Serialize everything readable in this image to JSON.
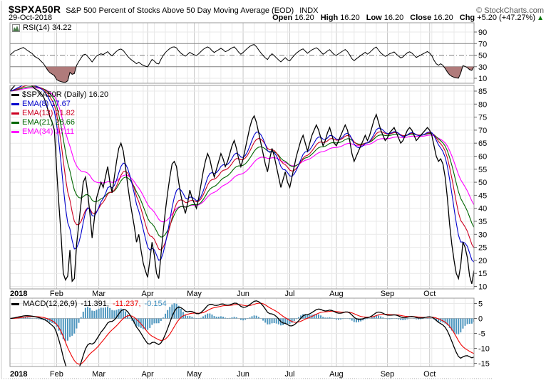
{
  "header": {
    "symbol": "$SPXA50R",
    "title": "S&P 500 Percent of Stocks Above 50 Day Moving Average (EOD)",
    "exchange": "INDX",
    "copyright": "© StockCharts.com",
    "date": "29-Oct-2018",
    "ohlc": [
      {
        "label": "Open",
        "value": "16.20"
      },
      {
        "label": "High",
        "value": "16.20"
      },
      {
        "label": "Low",
        "value": "16.20"
      },
      {
        "label": "Close",
        "value": "16.20"
      },
      {
        "label": "Chg",
        "value": "+5.20 (+47.27%)"
      }
    ],
    "chg_arrow": "▲",
    "chg_color": "#007700"
  },
  "rsi_panel": {
    "label": "RSI(14) 34.22",
    "y_ticks": [
      90,
      70,
      50,
      30,
      10
    ]
  },
  "main_panel": {
    "legend": [
      {
        "label": "$SPXA50R (Daily) 16.20",
        "color": "#000000"
      },
      {
        "label": "EMA(8) 17.67",
        "color": "#0000cc"
      },
      {
        "label": "EMA(13) 21.82",
        "color": "#cc0022"
      },
      {
        "label": "EMA(21) 28.66",
        "color": "#006600"
      },
      {
        "label": "EMA(34) 37.11",
        "color": "#ff00ff"
      }
    ],
    "y_ticks": [
      85,
      80,
      75,
      70,
      65,
      60,
      55,
      50,
      45,
      40,
      35,
      30,
      25,
      20,
      15,
      10
    ]
  },
  "macd_panel": {
    "label": "MACD(12,26,9)",
    "values": [
      {
        "text": "-11.391,",
        "color": "#000000"
      },
      {
        "text": "-11.237,",
        "color": "#ee0000"
      },
      {
        "text": "-0.154",
        "color": "#3f8fbf"
      }
    ],
    "y_ticks": [
      5,
      0,
      -5,
      -10,
      -15
    ]
  },
  "x_axis": {
    "year": "2018",
    "months": [
      "Feb",
      "Mar",
      "Apr",
      "May",
      "Jun",
      "Jul",
      "Aug",
      "Sep",
      "Oct"
    ],
    "month_start_days": [
      21,
      40,
      62,
      83,
      105,
      126,
      147,
      170,
      189
    ]
  },
  "chart_data": {
    "type": "line",
    "title": "$SPXA50R daily close with EMA(8,13,21,34) overlays, RSI(14) above, MACD(12,26,9) below",
    "x_unit": "trading day, Jan 2018 - 29 Oct 2018",
    "ylim": [
      10,
      85
    ],
    "rsi": {
      "period": 14,
      "overbought": 70,
      "midline": 50,
      "oversold": 30,
      "last": 34.22
    },
    "macd": {
      "fast": 12,
      "slow": 26,
      "signal": 9,
      "last_macd": -11.391,
      "last_signal": -11.237,
      "last_hist": -0.154
    },
    "ema_periods": [
      8,
      13,
      21,
      34
    ],
    "ema_last": {
      "ema8": 17.67,
      "ema13": 21.82,
      "ema21": 28.66,
      "ema34": 37.11
    },
    "last_close": 16.2,
    "daily_close": [
      85,
      86,
      87,
      87.5,
      88,
      88.5,
      89,
      88.5,
      88,
      87.5,
      87,
      86,
      85.5,
      85,
      84,
      83,
      81,
      78,
      75,
      73,
      70,
      55,
      42,
      30,
      15,
      12.5,
      14,
      24,
      12,
      13,
      26,
      34,
      42,
      50,
      52,
      46,
      38,
      28.6,
      36,
      44,
      47,
      50,
      48,
      52,
      56,
      50,
      46,
      52,
      58,
      63,
      65,
      62,
      56,
      49,
      43,
      38,
      33,
      27,
      30,
      24,
      19,
      16,
      13.5,
      20,
      27,
      22,
      15,
      13,
      22,
      31,
      39,
      46,
      52,
      57,
      58,
      56,
      50,
      45,
      41,
      38,
      42,
      47,
      44,
      42,
      40,
      44,
      49,
      54,
      58,
      61,
      59,
      55,
      52,
      55,
      58,
      61,
      59,
      56,
      58,
      61,
      64,
      66,
      63,
      59,
      56,
      59,
      63,
      67,
      71,
      74,
      75.5,
      73,
      69,
      65,
      61,
      57,
      54,
      59,
      63,
      60,
      56,
      52,
      48,
      51,
      54,
      50,
      48,
      52,
      56,
      60,
      63,
      66,
      68,
      65,
      62,
      65,
      68,
      70,
      72,
      70,
      67,
      64,
      66,
      69,
      71,
      68,
      65,
      64,
      66,
      68,
      70,
      72,
      70,
      66,
      61,
      58,
      60,
      62,
      64,
      66,
      68,
      66,
      68,
      71,
      74,
      76,
      73,
      70,
      68,
      66,
      67,
      69,
      70,
      71,
      69,
      67,
      65,
      66,
      68,
      70,
      71,
      70,
      68,
      66,
      67,
      68,
      69,
      70,
      71,
      70,
      68,
      64,
      60,
      58,
      59,
      57,
      52,
      44,
      34,
      26,
      20,
      15,
      13,
      18,
      27,
      25,
      21,
      14,
      11,
      16.2
    ],
    "colors": {
      "price": "#000000",
      "ema8": "#0000cc",
      "ema13": "#cc0022",
      "ema21": "#006600",
      "ema34": "#ff00ff",
      "rsi_line": "#000000",
      "rsi_fill": "#b07b7b",
      "rsi_levels": "#808080",
      "macd_line": "#000000",
      "macd_signal": "#ee0000",
      "macd_hist": "#4e96be",
      "grid": "#e9e9e9",
      "grid_month": "#c9c9c9",
      "panel_border": "#999999"
    }
  }
}
